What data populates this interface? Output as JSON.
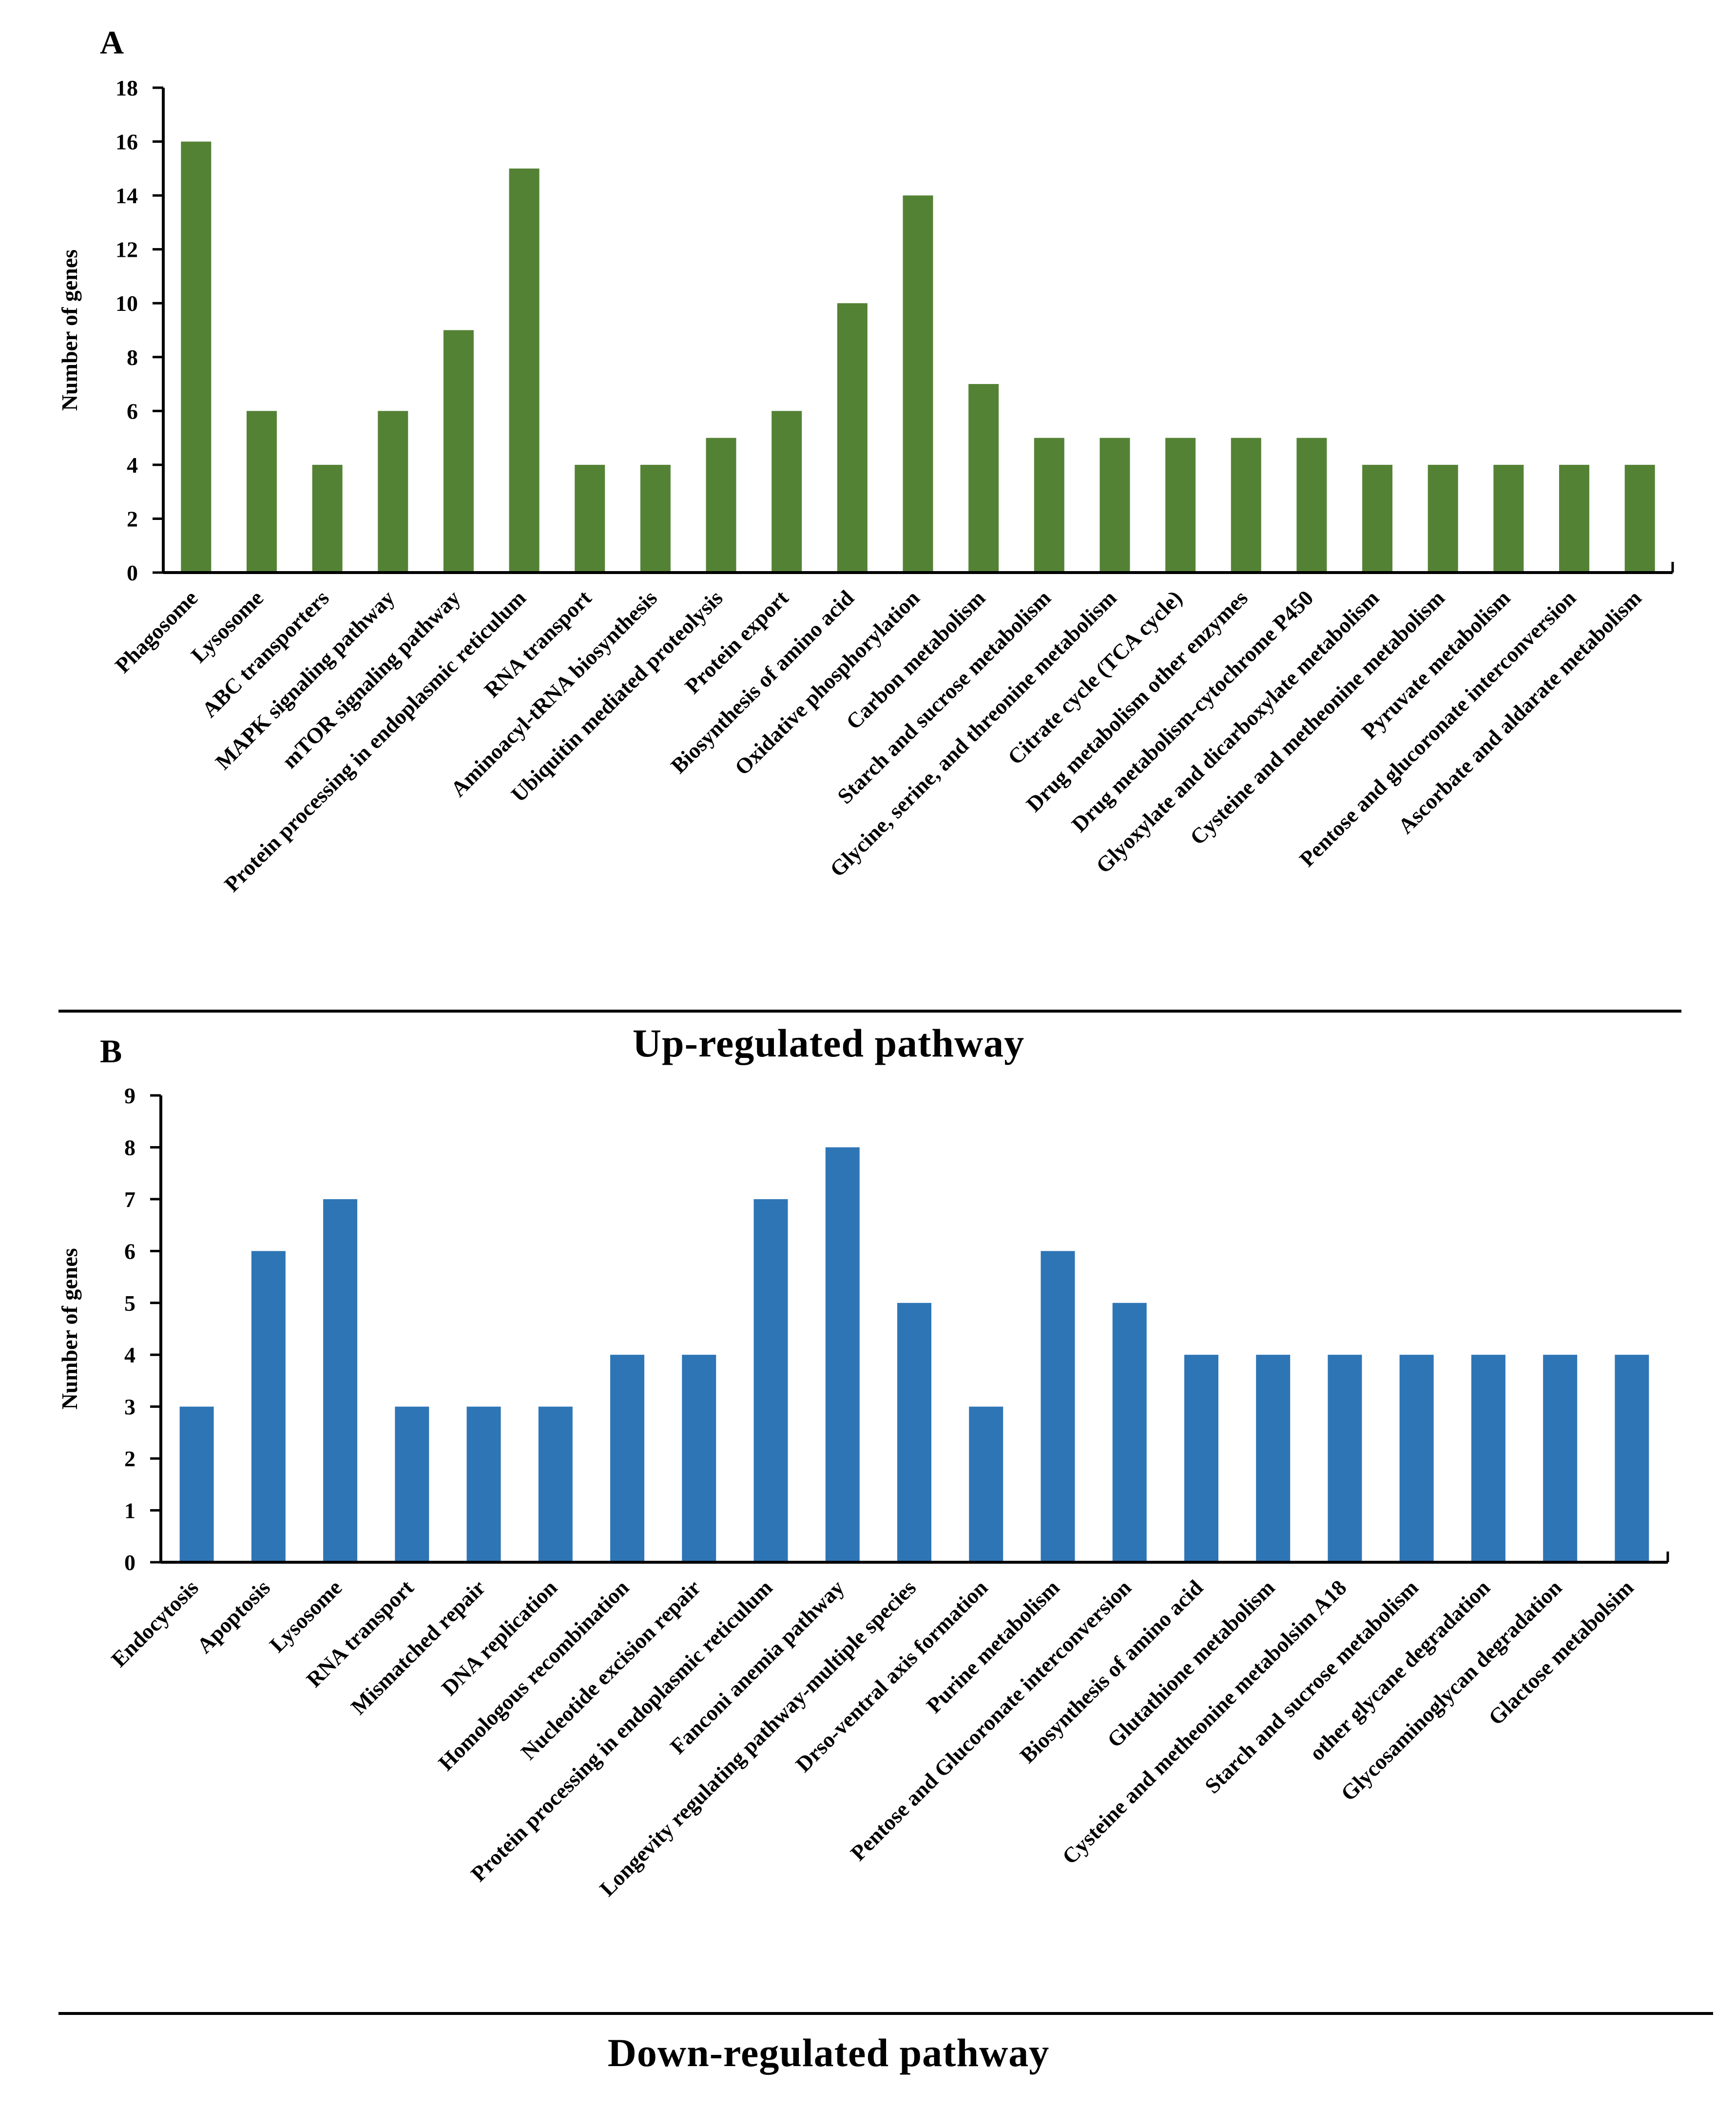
{
  "chart_data": [
    {
      "type": "bar",
      "panel": "A",
      "ylabel": "Number of genes",
      "xlabel": "Up-regulated pathway",
      "ylim": [
        0,
        18
      ],
      "yticks": [
        0,
        2,
        4,
        6,
        8,
        10,
        12,
        14,
        16,
        18
      ],
      "color": "#548235",
      "categories": [
        "Phagosome",
        "Lysosome",
        "ABC transporters",
        "MAPK signaling pathway",
        "mTOR signaling pathway",
        "Protein processing in endoplasmic reticulum",
        "RNA transport",
        "Aminoacyl-tRNA biosynthesis",
        "Ubiquitin mediated proteolysis",
        "Protein export",
        "Biosynthesis of amino acid",
        "Oxidative phosphorylation",
        "Carbon metabolism",
        "Starch and sucrose metabolism",
        "Glycine, serine, and threonine metabolism",
        "Citrate cycle (TCA cycle)",
        "Drug metabolism other enzymes",
        "Drug metabolism-cytochrome P450",
        "Glyoxylate and dicarboxylate metabolism",
        "Cysteine and metheonine metabolism",
        "Pyruvate metabolism",
        "Pentose and glucoronate interconversion",
        "Ascorbate and aldarate metabolism"
      ],
      "values": [
        16,
        6,
        4,
        6,
        9,
        15,
        4,
        4,
        5,
        6,
        10,
        14,
        7,
        5,
        5,
        5,
        5,
        5,
        4,
        4,
        4,
        4,
        4
      ]
    },
    {
      "type": "bar",
      "panel": "B",
      "ylabel": "Number of genes",
      "xlabel": "Down-regulated pathway",
      "ylim": [
        0,
        9
      ],
      "yticks": [
        0,
        1,
        2,
        3,
        4,
        5,
        6,
        7,
        8,
        9
      ],
      "color": "#2e75b6",
      "categories": [
        "Endocytosis",
        "Apoptosis",
        "Lysosome",
        "RNA transport",
        "Mismatched repair",
        "DNA replication",
        "Homologous recombination",
        "Nucleotide excision repair",
        "Protein processing in endoplasmic reticulum",
        "Fanconi anemia pathway",
        "Longevity regulating pathway-multiple species",
        "Drso-ventral axis formation",
        "Purine metabolism",
        "Pentose and Glucoronate interconversion",
        "Biosynthesis of amino acid",
        "Glutathione metabolism",
        "Cysteine and metheonine metabolsim A18",
        "Starch and sucrose metabolism",
        "other glycane degradation",
        "Glycosaminoglycan degradation",
        "Glactose metabolsim"
      ],
      "values": [
        3,
        6,
        7,
        3,
        3,
        3,
        4,
        4,
        7,
        8,
        5,
        3,
        6,
        5,
        4,
        4,
        4,
        4,
        4,
        4,
        4
      ]
    }
  ]
}
